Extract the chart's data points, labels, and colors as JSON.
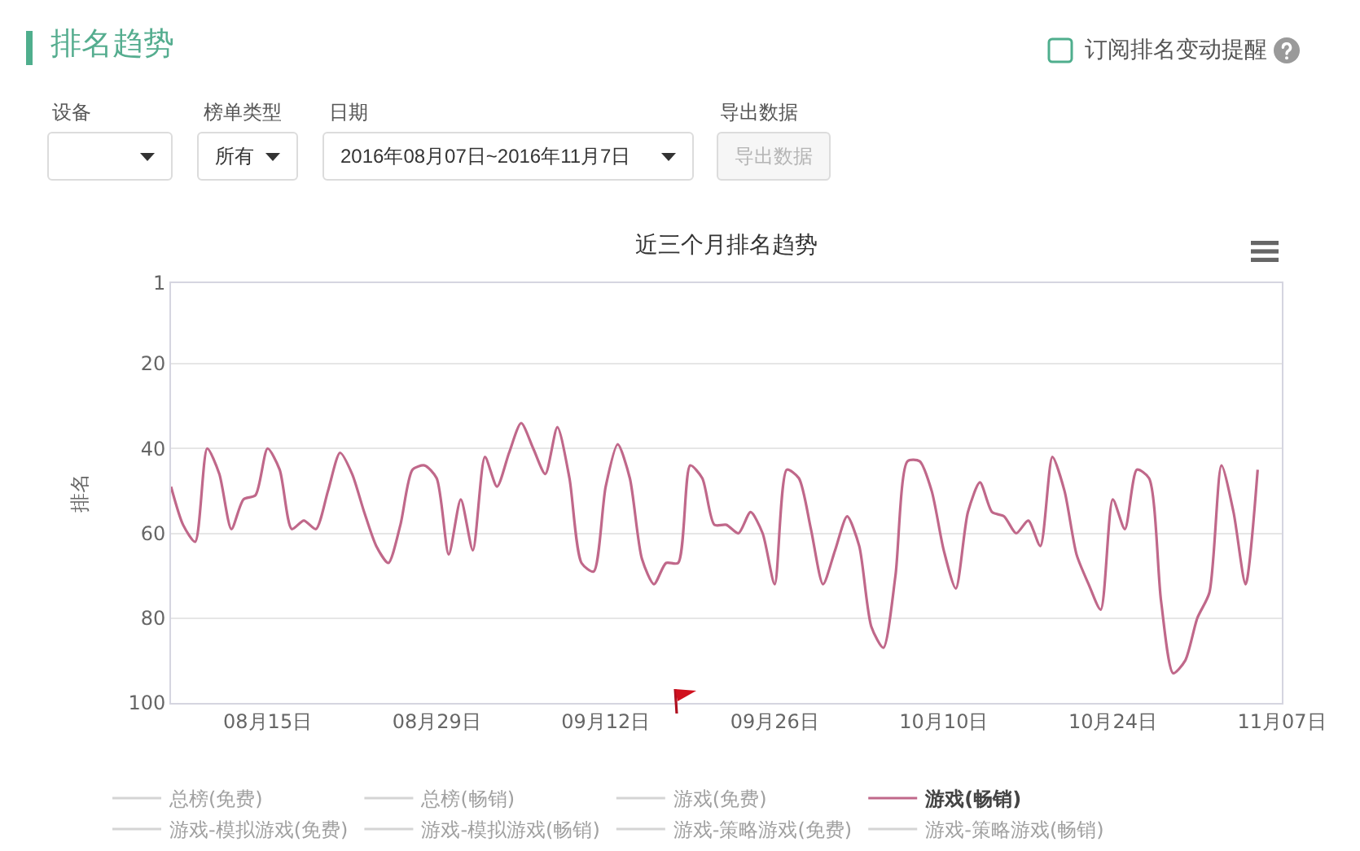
{
  "chart_data": [
    {
      "type": "other",
      "title": "排名趋势",
      "annotations": [
        "订阅排名变动提醒",
        "设备",
        "榜单类型",
        "日期",
        "导出数据",
        "所有",
        "2016年08月07日~2016年11月7日",
        "导出数据"
      ]
    },
    {
      "type": "line",
      "title": "近三个月排名趋势",
      "ylabel": "排名",
      "x": [
        "2016-08-07",
        "2016-08-08",
        "2016-08-09",
        "2016-08-10",
        "2016-08-11",
        "2016-08-12",
        "2016-08-13",
        "2016-08-14",
        "2016-08-15",
        "2016-08-16",
        "2016-08-17",
        "2016-08-18",
        "2016-08-19",
        "2016-08-20",
        "2016-08-21",
        "2016-08-22",
        "2016-08-23",
        "2016-08-24",
        "2016-08-25",
        "2016-08-26",
        "2016-08-27",
        "2016-08-28",
        "2016-08-29",
        "2016-08-30",
        "2016-08-31",
        "2016-09-01",
        "2016-09-02",
        "2016-09-03",
        "2016-09-04",
        "2016-09-05",
        "2016-09-06",
        "2016-09-07",
        "2016-09-08",
        "2016-09-09",
        "2016-09-10",
        "2016-09-11",
        "2016-09-12",
        "2016-09-13",
        "2016-09-14",
        "2016-09-15",
        "2016-09-16",
        "2016-09-17",
        "2016-09-18",
        "2016-09-19",
        "2016-09-20",
        "2016-09-21",
        "2016-09-22",
        "2016-09-23",
        "2016-09-24",
        "2016-09-25",
        "2016-09-26",
        "2016-09-27",
        "2016-09-28",
        "2016-09-29",
        "2016-09-30",
        "2016-10-01",
        "2016-10-02",
        "2016-10-03",
        "2016-10-04",
        "2016-10-05",
        "2016-10-06",
        "2016-10-07",
        "2016-10-08",
        "2016-10-09",
        "2016-10-10",
        "2016-10-11",
        "2016-10-12",
        "2016-10-13",
        "2016-10-14",
        "2016-10-15",
        "2016-10-16",
        "2016-10-17",
        "2016-10-18",
        "2016-10-19",
        "2016-10-20",
        "2016-10-21",
        "2016-10-22",
        "2016-10-23",
        "2016-10-24",
        "2016-10-25",
        "2016-10-26",
        "2016-10-27",
        "2016-10-28",
        "2016-10-29",
        "2016-10-30",
        "2016-10-31",
        "2016-11-01",
        "2016-11-02",
        "2016-11-03",
        "2016-11-04",
        "2016-11-05"
      ],
      "xlim": [
        "2016-08-07",
        "2016-11-07"
      ],
      "xticks": [
        {
          "value": "2016-08-15",
          "label": "08月15日"
        },
        {
          "value": "2016-08-29",
          "label": "08月29日"
        },
        {
          "value": "2016-09-12",
          "label": "09月12日"
        },
        {
          "value": "2016-09-26",
          "label": "09月26日"
        },
        {
          "value": "2016-10-10",
          "label": "10月10日"
        },
        {
          "value": "2016-10-24",
          "label": "10月24日"
        },
        {
          "value": "2016-11-07",
          "label": "11月07日"
        }
      ],
      "ylim": [
        100,
        1
      ],
      "yticks": [
        1,
        20,
        40,
        60,
        80,
        100
      ],
      "grid": "y",
      "legend": "bottom",
      "marker": "none",
      "series": [
        {
          "name": "总榜(免费)",
          "color": "#aaaaaa",
          "values": [
            null,
            null,
            null,
            null,
            null,
            null,
            null,
            null,
            null,
            null,
            null,
            null,
            null,
            null,
            null,
            null,
            null,
            null,
            null,
            null,
            null,
            null,
            null,
            null,
            null,
            null,
            null,
            null,
            null,
            null,
            null,
            null,
            null,
            null,
            null,
            null,
            null,
            null,
            null,
            null,
            null,
            null,
            null,
            null,
            null,
            null,
            null,
            null,
            null,
            null,
            null,
            null,
            null,
            null,
            null,
            null,
            null,
            null,
            null,
            null,
            null,
            null,
            null,
            null,
            null,
            null,
            null,
            null,
            null,
            null,
            null,
            null,
            null,
            null,
            null,
            null,
            null,
            null,
            null,
            null,
            null,
            null,
            null,
            null,
            null,
            null,
            null,
            null,
            null,
            null,
            null
          ]
        },
        {
          "name": "总榜(畅销)",
          "color": "#aaaaaa",
          "values": [
            null,
            null,
            null,
            null,
            null,
            null,
            null,
            null,
            null,
            null,
            null,
            null,
            null,
            null,
            null,
            null,
            null,
            null,
            null,
            null,
            null,
            null,
            null,
            null,
            null,
            null,
            null,
            null,
            null,
            null,
            null,
            null,
            null,
            null,
            null,
            null,
            null,
            null,
            null,
            null,
            null,
            null,
            null,
            null,
            null,
            null,
            null,
            null,
            null,
            null,
            null,
            null,
            null,
            null,
            null,
            null,
            null,
            null,
            null,
            null,
            null,
            null,
            null,
            null,
            null,
            null,
            null,
            null,
            null,
            null,
            null,
            null,
            null,
            null,
            null,
            null,
            null,
            null,
            null,
            null,
            null,
            null,
            null,
            null,
            null,
            null,
            null,
            null,
            null,
            null,
            null
          ]
        },
        {
          "name": "游戏(免费)",
          "color": "#aaaaaa",
          "values": [
            null,
            null,
            null,
            null,
            null,
            null,
            null,
            null,
            null,
            null,
            null,
            null,
            null,
            null,
            null,
            null,
            null,
            null,
            null,
            null,
            null,
            null,
            null,
            null,
            null,
            null,
            null,
            null,
            null,
            null,
            null,
            null,
            null,
            null,
            null,
            null,
            null,
            null,
            null,
            null,
            null,
            null,
            null,
            null,
            null,
            null,
            null,
            null,
            null,
            null,
            null,
            null,
            null,
            null,
            null,
            null,
            null,
            null,
            null,
            null,
            null,
            null,
            null,
            null,
            null,
            null,
            null,
            null,
            null,
            null,
            null,
            null,
            null,
            null,
            null,
            null,
            null,
            null,
            null,
            null,
            null,
            null,
            null,
            null,
            null,
            null,
            null,
            null,
            null,
            null,
            null
          ]
        },
        {
          "name": "游戏(畅销)",
          "color": "#c0688a",
          "values": [
            49,
            58,
            62,
            40,
            46,
            59,
            52,
            51,
            40,
            45,
            59,
            57,
            59,
            50,
            41,
            46,
            55,
            63,
            67,
            58,
            45,
            44,
            47,
            65,
            52,
            64,
            42,
            49,
            41,
            34,
            40,
            46,
            35,
            47,
            67,
            69,
            49,
            39,
            47,
            66,
            72,
            67,
            67,
            44,
            47,
            58,
            58,
            60,
            55,
            60,
            72,
            45,
            47,
            59,
            72,
            64,
            56,
            63,
            82,
            87,
            70,
            43,
            43,
            50,
            64,
            73,
            55,
            48,
            55,
            56,
            60,
            57,
            63,
            42,
            50,
            65,
            72,
            78,
            52,
            59,
            45,
            47,
            76,
            93,
            90,
            80,
            74,
            44,
            55,
            72,
            45
          ]
        },
        {
          "name": "游戏-模拟游戏(免费)",
          "color": "#aaaaaa",
          "values": [
            null,
            null,
            null,
            null,
            null,
            null,
            null,
            null,
            null,
            null,
            null,
            null,
            null,
            null,
            null,
            null,
            null,
            null,
            null,
            null,
            null,
            null,
            null,
            null,
            null,
            null,
            null,
            null,
            null,
            null,
            null,
            null,
            null,
            null,
            null,
            null,
            null,
            null,
            null,
            null,
            null,
            null,
            null,
            null,
            null,
            null,
            null,
            null,
            null,
            null,
            null,
            null,
            null,
            null,
            null,
            null,
            null,
            null,
            null,
            null,
            null,
            null,
            null,
            null,
            null,
            null,
            null,
            null,
            null,
            null,
            null,
            null,
            null,
            null,
            null,
            null,
            null,
            null,
            null,
            null,
            null,
            null,
            null,
            null,
            null,
            null,
            null,
            null,
            null,
            null,
            null
          ]
        },
        {
          "name": "游戏-模拟游戏(畅销)",
          "color": "#aaaaaa",
          "values": [
            null,
            null,
            null,
            null,
            null,
            null,
            null,
            null,
            null,
            null,
            null,
            null,
            null,
            null,
            null,
            null,
            null,
            null,
            null,
            null,
            null,
            null,
            null,
            null,
            null,
            null,
            null,
            null,
            null,
            null,
            null,
            null,
            null,
            null,
            null,
            null,
            null,
            null,
            null,
            null,
            null,
            null,
            null,
            null,
            null,
            null,
            null,
            null,
            null,
            null,
            null,
            null,
            null,
            null,
            null,
            null,
            null,
            null,
            null,
            null,
            null,
            null,
            null,
            null,
            null,
            null,
            null,
            null,
            null,
            null,
            null,
            null,
            null,
            null,
            null,
            null,
            null,
            null,
            null,
            null,
            null,
            null,
            null,
            null,
            null,
            null,
            null,
            null,
            null,
            null,
            null
          ]
        },
        {
          "name": "游戏-策略游戏(免费)",
          "color": "#aaaaaa",
          "values": [
            null,
            null,
            null,
            null,
            null,
            null,
            null,
            null,
            null,
            null,
            null,
            null,
            null,
            null,
            null,
            null,
            null,
            null,
            null,
            null,
            null,
            null,
            null,
            null,
            null,
            null,
            null,
            null,
            null,
            null,
            null,
            null,
            null,
            null,
            null,
            null,
            null,
            null,
            null,
            null,
            null,
            null,
            null,
            null,
            null,
            null,
            null,
            null,
            null,
            null,
            null,
            null,
            null,
            null,
            null,
            null,
            null,
            null,
            null,
            null,
            null,
            null,
            null,
            null,
            null,
            null,
            null,
            null,
            null,
            null,
            null,
            null,
            null,
            null,
            null,
            null,
            null,
            null,
            null,
            null,
            null,
            null,
            null,
            null,
            null,
            null,
            null,
            null,
            null,
            null,
            null
          ]
        },
        {
          "name": "游戏-策略游戏(畅销)",
          "color": "#aaaaaa",
          "values": [
            null,
            null,
            null,
            null,
            null,
            null,
            null,
            null,
            null,
            null,
            null,
            null,
            null,
            null,
            null,
            null,
            null,
            null,
            null,
            null,
            null,
            null,
            null,
            null,
            null,
            null,
            null,
            null,
            null,
            null,
            null,
            null,
            null,
            null,
            null,
            null,
            null,
            null,
            null,
            null,
            null,
            null,
            null,
            null,
            null,
            null,
            null,
            null,
            null,
            null,
            null,
            null,
            null,
            null,
            null,
            null,
            null,
            null,
            null,
            null,
            null,
            null,
            null,
            null,
            null,
            null,
            null,
            null,
            null,
            null,
            null,
            null,
            null,
            null,
            null,
            null,
            null,
            null,
            null,
            null,
            null,
            null,
            null,
            null,
            null,
            null,
            null,
            null,
            null,
            null,
            null
          ]
        }
      ]
    }
  ]
}
